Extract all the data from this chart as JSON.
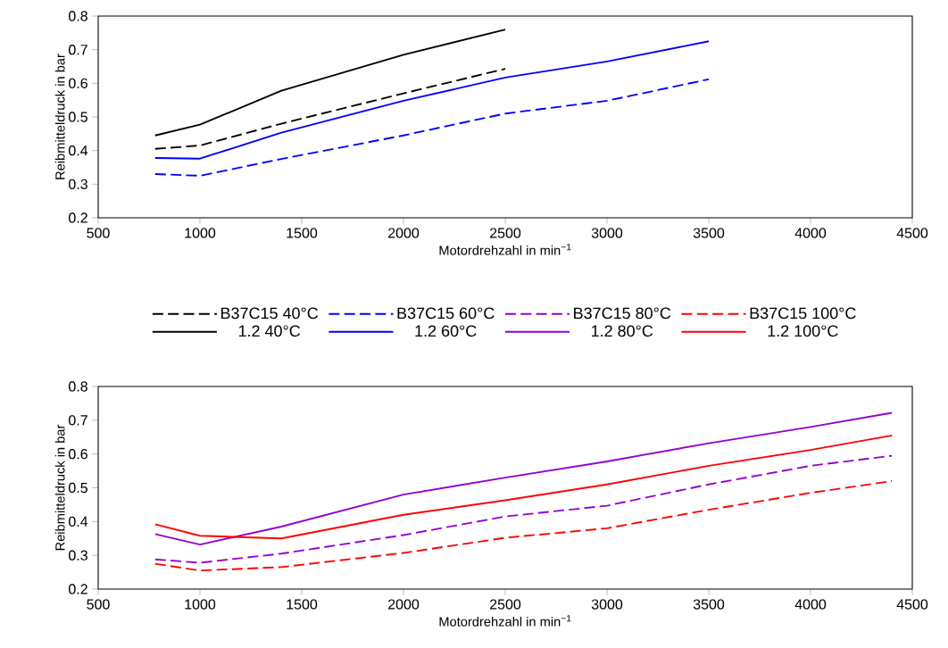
{
  "chart_data": [
    {
      "type": "line",
      "xlabel": "Motordrehzahl in min$^{−1}$",
      "ylabel": "Reibmitteldruck in bar",
      "xlim": [
        500,
        4500
      ],
      "ylim": [
        0.2,
        0.8
      ],
      "xticks": [
        500,
        1000,
        1500,
        2000,
        2500,
        3000,
        3500,
        4000,
        4500
      ],
      "yticks": [
        0.2,
        0.3,
        0.4,
        0.5,
        0.6,
        0.7,
        0.8
      ],
      "legend": "bottom",
      "series": [
        {
          "name": "B37C15 40°C",
          "color": "#000000",
          "line_style": "dashed",
          "x": [
            780,
            1000,
            1400,
            2000,
            2500
          ],
          "values": [
            0.405,
            0.415,
            0.48,
            0.57,
            0.643
          ]
        },
        {
          "name": "B37C15 60°C",
          "color": "#0000ff",
          "line_style": "dashed",
          "x": [
            780,
            1000,
            1400,
            2000,
            2500,
            3000,
            3500
          ],
          "values": [
            0.33,
            0.325,
            0.375,
            0.445,
            0.51,
            0.548,
            0.612
          ]
        },
        {
          "name": "1.2 40°C",
          "color": "#000000",
          "line_style": "solid",
          "x": [
            780,
            1000,
            1400,
            2000,
            2500
          ],
          "values": [
            0.445,
            0.477,
            0.578,
            0.685,
            0.76
          ]
        },
        {
          "name": "1.2 60°C",
          "color": "#0000ff",
          "line_style": "solid",
          "x": [
            780,
            1000,
            1400,
            2000,
            2500,
            3000,
            3500
          ],
          "values": [
            0.378,
            0.376,
            0.453,
            0.548,
            0.617,
            0.665,
            0.725
          ]
        }
      ]
    },
    {
      "type": "line",
      "xlabel": "Motordrehzahl in min$^{−1}$",
      "ylabel": "Reibmitteldruck in bar",
      "xlim": [
        500,
        4500
      ],
      "ylim": [
        0.2,
        0.8
      ],
      "xticks": [
        500,
        1000,
        1500,
        2000,
        2500,
        3000,
        3500,
        4000,
        4500
      ],
      "yticks": [
        0.2,
        0.3,
        0.4,
        0.5,
        0.6,
        0.7,
        0.8
      ],
      "series": [
        {
          "name": "B37C15 80°C",
          "color": "#9400d3",
          "line_style": "dashed",
          "x": [
            780,
            1000,
            1400,
            2000,
            2500,
            3000,
            3500,
            4000,
            4400
          ],
          "values": [
            0.288,
            0.278,
            0.305,
            0.36,
            0.415,
            0.447,
            0.51,
            0.565,
            0.595
          ]
        },
        {
          "name": "B37C15 100°C",
          "color": "#ff0000",
          "line_style": "dashed",
          "x": [
            780,
            1000,
            1400,
            2000,
            2500,
            3000,
            3500,
            4000,
            4400
          ],
          "values": [
            0.275,
            0.255,
            0.265,
            0.307,
            0.352,
            0.38,
            0.435,
            0.485,
            0.52
          ]
        },
        {
          "name": "1.2 80°C",
          "color": "#9400d3",
          "line_style": "solid",
          "x": [
            780,
            1000,
            1400,
            2000,
            2500,
            3000,
            3500,
            4000,
            4400
          ],
          "values": [
            0.363,
            0.332,
            0.385,
            0.48,
            0.53,
            0.578,
            0.632,
            0.68,
            0.722
          ]
        },
        {
          "name": "1.2 100°C",
          "color": "#ff0000",
          "line_style": "solid",
          "x": [
            780,
            1000,
            1400,
            2000,
            2500,
            3000,
            3500,
            4000,
            4400
          ],
          "values": [
            0.392,
            0.358,
            0.35,
            0.42,
            0.463,
            0.51,
            0.565,
            0.612,
            0.655
          ]
        }
      ]
    }
  ]
}
